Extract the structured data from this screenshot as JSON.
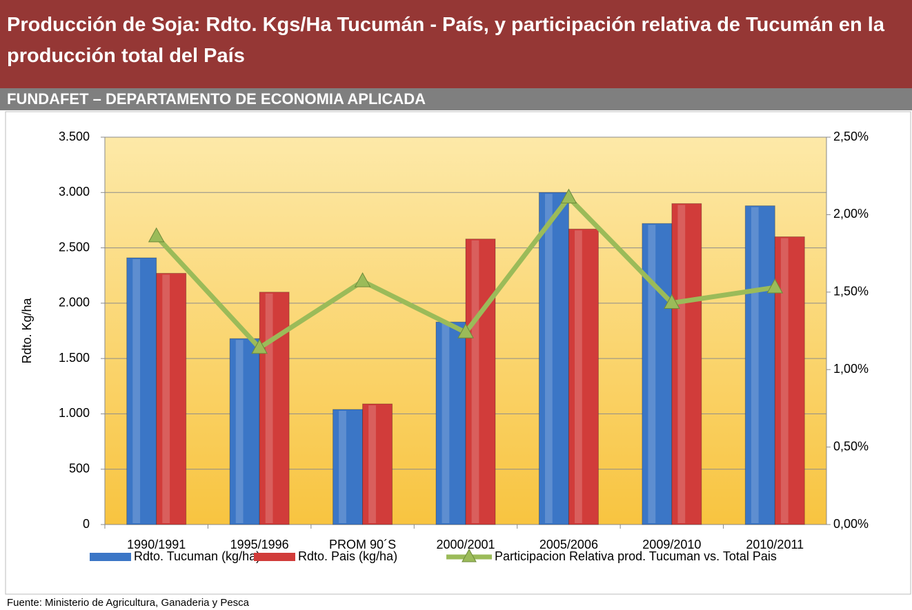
{
  "header": {
    "title": "Producción de Soja: Rdto. Kgs/Ha Tucumán - País, y participación relativa de Tucumán en la producción total del País",
    "subtitle": "FUNDAFET – DEPARTAMENTO DE ECONOMIA APLICADA"
  },
  "chart_data": {
    "type": "bar",
    "y_label": "Rdto. Kg/ha",
    "categories": [
      "1990/1991",
      "1995/1996",
      "PROM 90´S",
      "2000/2001",
      "2005/2006",
      "2009/2010",
      "2010/2011"
    ],
    "series": [
      {
        "name": "Rdto. Tucuman (kg/ha)",
        "type": "bar",
        "color": "#3b76c6",
        "values": [
          2410,
          1680,
          1040,
          1830,
          3000,
          2720,
          2880
        ]
      },
      {
        "name": "Rdto. Pais (kg/ha)",
        "type": "bar",
        "color": "#d13c3a",
        "values": [
          2270,
          2100,
          1090,
          2580,
          2670,
          2900,
          2600
        ]
      },
      {
        "name": "Participacion Relativa prod. Tucuman vs. Total Pais",
        "type": "line",
        "axis": "y2",
        "color": "#9bbb59",
        "values": [
          1.86,
          1.14,
          1.57,
          1.24,
          2.11,
          1.43,
          1.53
        ]
      }
    ],
    "ylim": [
      0,
      3500
    ],
    "yticks": [
      0,
      500,
      {
        "value": 1000,
        "label": "1.000"
      },
      {
        "value": 1500,
        "label": "1.500"
      },
      {
        "value": 2000,
        "label": "2.000"
      },
      {
        "value": 2500,
        "label": "2.500"
      },
      {
        "value": 3000,
        "label": "3.000"
      },
      {
        "value": 3500,
        "label": "3.500"
      }
    ],
    "y2lim": [
      0,
      2.5
    ],
    "y2ticks": [
      {
        "value": 0,
        "label": "0,00%"
      },
      {
        "value": 0.5,
        "label": "0,50%"
      },
      {
        "value": 1,
        "label": "1,00%"
      },
      {
        "value": 1.5,
        "label": "1,50%"
      },
      {
        "value": 2,
        "label": "2,00%"
      },
      {
        "value": 2.5,
        "label": "2,50%"
      }
    ],
    "grid": true
  },
  "source": "Fuente: Ministerio de Agricultura, Ganaderia y Pesca"
}
